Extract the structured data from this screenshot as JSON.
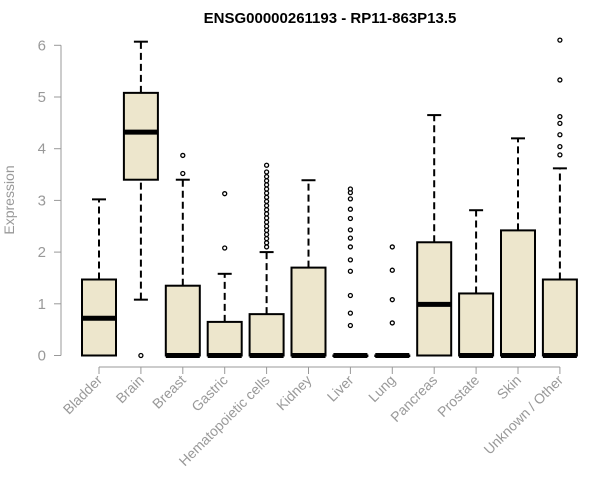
{
  "chart_data": {
    "type": "boxplot",
    "title": "ENSG00000261193 - RP11-863P13.5",
    "xlabel": "",
    "ylabel": "Expression",
    "ylim": [
      0,
      6.2
    ],
    "yticks": [
      0,
      1,
      2,
      3,
      4,
      5,
      6
    ],
    "colors": {
      "box_fill": "#ede6cc",
      "stroke": "#000000",
      "axis_text": "#999999"
    },
    "categories": [
      "Bladder",
      "Brain",
      "Breast",
      "Gastric",
      "Hematopoietic cells",
      "Kidney",
      "Liver",
      "Lung",
      "Pancreas",
      "Prostate",
      "Skin",
      "Unknown / Other"
    ],
    "boxes": [
      {
        "category": "Bladder",
        "whisker_low": 0,
        "q1": 0,
        "median": 0.72,
        "q3": 1.47,
        "whisker_high": 3.02,
        "outliers": []
      },
      {
        "category": "Brain",
        "whisker_low": 1.08,
        "q1": 3.4,
        "median": 4.32,
        "q3": 5.08,
        "whisker_high": 6.07,
        "outliers": [
          0
        ]
      },
      {
        "category": "Breast",
        "whisker_low": 0,
        "q1": 0,
        "median": 0,
        "q3": 1.35,
        "whisker_high": 3.4,
        "outliers": [
          3.52,
          3.87
        ]
      },
      {
        "category": "Gastric",
        "whisker_low": 0,
        "q1": 0,
        "median": 0,
        "q3": 0.65,
        "whisker_high": 1.58,
        "outliers": [
          2.08,
          3.13
        ]
      },
      {
        "category": "Hematopoietic cells",
        "whisker_low": 0,
        "q1": 0,
        "median": 0,
        "q3": 0.8,
        "whisker_high": 2.0,
        "outliers": [
          2.1,
          2.18,
          2.26,
          2.34,
          2.42,
          2.5,
          2.58,
          2.66,
          2.74,
          2.82,
          2.9,
          2.98,
          3.06,
          3.14,
          3.22,
          3.3,
          3.38,
          3.46,
          3.55,
          3.68
        ]
      },
      {
        "category": "Kidney",
        "whisker_low": 0,
        "q1": 0,
        "median": 0,
        "q3": 1.7,
        "whisker_high": 3.39,
        "outliers": []
      },
      {
        "category": "Liver",
        "whisker_low": 0,
        "q1": 0,
        "median": 0,
        "q3": 0,
        "whisker_high": 0,
        "outliers": [
          0.58,
          0.82,
          1.16,
          1.63,
          1.85,
          2.1,
          2.27,
          2.43,
          2.65,
          2.83,
          3.03,
          3.15,
          3.22
        ]
      },
      {
        "category": "Lung",
        "whisker_low": 0,
        "q1": 0,
        "median": 0,
        "q3": 0,
        "whisker_high": 0,
        "outliers": [
          0.63,
          1.08,
          1.65,
          2.1
        ]
      },
      {
        "category": "Pancreas",
        "whisker_low": 0,
        "q1": 0,
        "median": 0.99,
        "q3": 2.19,
        "whisker_high": 4.65,
        "outliers": []
      },
      {
        "category": "Prostate",
        "whisker_low": 0,
        "q1": 0,
        "median": 0,
        "q3": 1.2,
        "whisker_high": 2.81,
        "outliers": []
      },
      {
        "category": "Skin",
        "whisker_low": 0,
        "q1": 0,
        "median": 0,
        "q3": 2.42,
        "whisker_high": 4.2,
        "outliers": []
      },
      {
        "category": "Unknown / Other",
        "whisker_low": 0,
        "q1": 0,
        "median": 0,
        "q3": 1.47,
        "whisker_high": 3.62,
        "outliers": [
          3.88,
          4.04,
          4.27,
          4.49,
          4.62,
          5.33,
          6.1
        ]
      }
    ]
  }
}
